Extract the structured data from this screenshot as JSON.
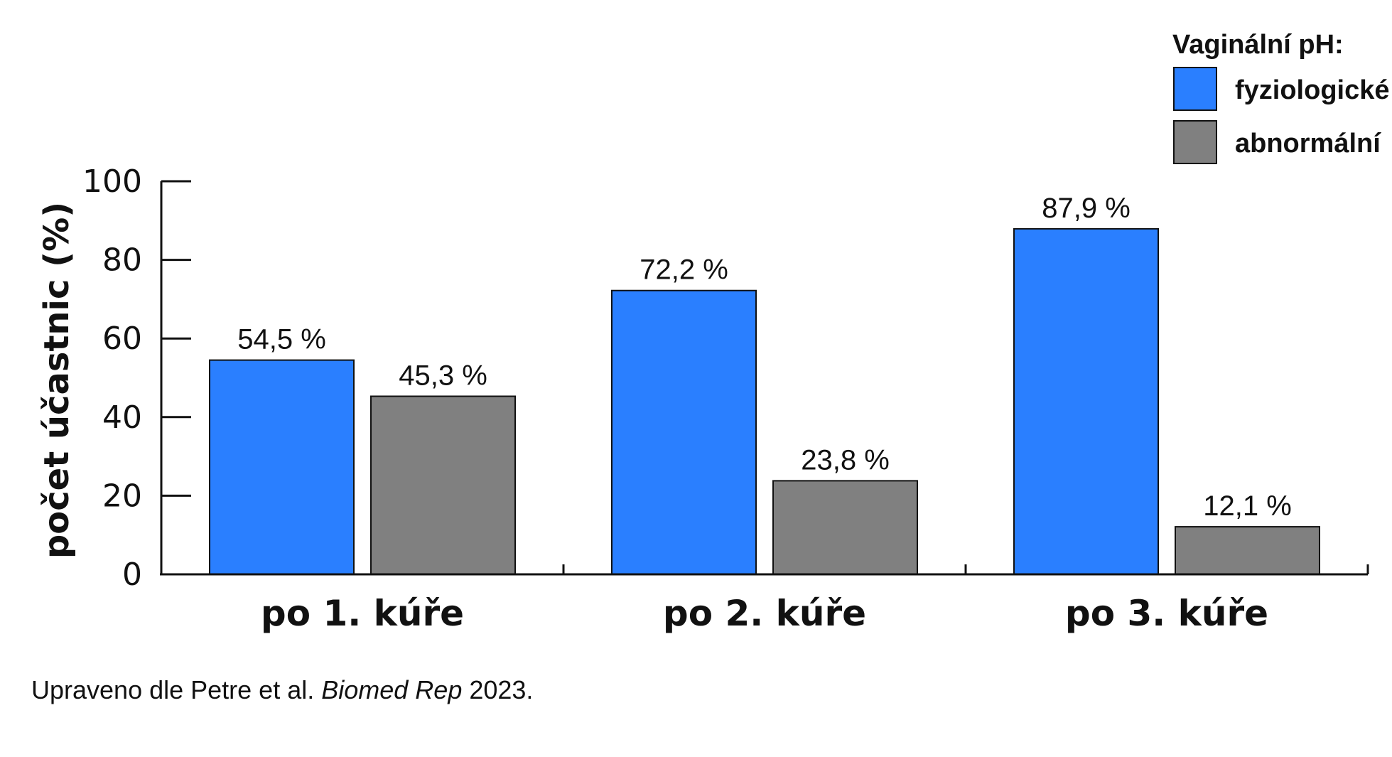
{
  "chart_data": {
    "type": "bar",
    "categories": [
      "po 1. kúře",
      "po 2. kúře",
      "po 3. kúře"
    ],
    "series": [
      {
        "name": "fyziologické",
        "values": [
          54.5,
          72.2,
          87.9
        ],
        "labels": [
          "54,5 %",
          "72,2 %",
          "87,9 %"
        ],
        "color": "#2a7fff"
      },
      {
        "name": "abnormální",
        "values": [
          45.3,
          23.8,
          12.1
        ],
        "labels": [
          "45,3 %",
          "23,8 %",
          "12,1 %"
        ],
        "color": "#808080"
      }
    ],
    "ylabel": "počet účastnic (%)",
    "ylim": [
      0,
      100
    ],
    "yticks": [
      "0",
      "20",
      "40",
      "60",
      "80",
      "100"
    ],
    "legend": {
      "title": "Vaginální pH:",
      "placement": "top-right"
    },
    "grid": false
  },
  "source": {
    "prefix": "Upraveno dle Petre et al. ",
    "journal": "Biomed Rep",
    "suffix": " 2023."
  }
}
